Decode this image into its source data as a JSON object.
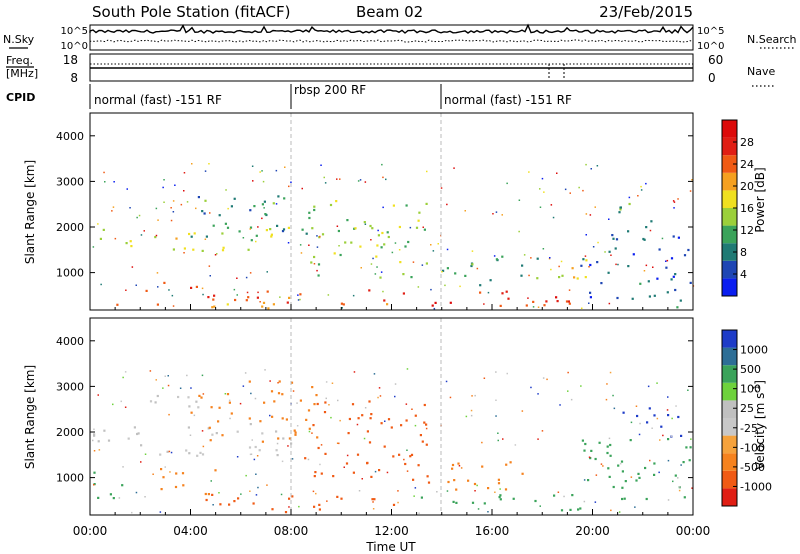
{
  "header": {
    "station": "South Pole Station (fitACF)",
    "beam": "Beam 02",
    "date": "23/Feb/2015"
  },
  "noise_panel": {
    "left_label": "N.Sky",
    "right_label": "N.Search",
    "tick_top": "10^5",
    "tick_bottom": "10^0"
  },
  "freq_panel": {
    "left_label_line1": "Freq.",
    "left_label_line2": "[MHz]",
    "left_tick_top": "18",
    "left_tick_bottom": "8",
    "right_label": "Nave",
    "right_tick_top": "60",
    "right_tick_bottom": "0"
  },
  "cpid": {
    "label": "CPID",
    "segments": [
      {
        "text": "normal (fast) -151 RF",
        "start_hour": 0
      },
      {
        "text": "rbsp 200 RF",
        "start_hour": 8
      },
      {
        "text": "normal (fast) -151 RF",
        "start_hour": 14
      }
    ]
  },
  "chart_data": [
    {
      "type": "heatmap",
      "name": "power",
      "ylabel": "Slant Range [km]",
      "xlim_hours": [
        0,
        24
      ],
      "ylim_km": [
        180,
        4500
      ],
      "yticks": [
        "1000",
        "2000",
        "3000",
        "4000"
      ],
      "colorbar": {
        "label": "Power [dB]",
        "ticks": [
          "4",
          "8",
          "12",
          "16",
          "20",
          "24",
          "28"
        ],
        "colors": [
          "#0a1ef0",
          "#1e46b4",
          "#1f7a74",
          "#3aa35a",
          "#9bcf3a",
          "#f0e020",
          "#f5a020",
          "#f05a14",
          "#e01e14",
          "#dc0a0a"
        ]
      },
      "regions": [
        {
          "h0": 0.0,
          "h1": 7.7,
          "r0": 190,
          "r1": 380,
          "value": 20
        },
        {
          "h0": 0.0,
          "h1": 4.4,
          "r0": 1500,
          "r1": 2000,
          "value": 16
        },
        {
          "h0": 2.0,
          "h1": 4.5,
          "r0": 600,
          "r1": 900,
          "value": 26
        },
        {
          "h0": 4.4,
          "h1": 8.2,
          "r0": 1500,
          "r1": 2100,
          "value": 14
        },
        {
          "h0": 4.0,
          "h1": 9.0,
          "r0": 1800,
          "r1": 2800,
          "value": 10
        },
        {
          "h0": 4.5,
          "h1": 13.0,
          "r0": 250,
          "r1": 650,
          "value": 24
        },
        {
          "h0": 8.5,
          "h1": 13.5,
          "r0": 900,
          "r1": 2600,
          "value": 14
        },
        {
          "h0": 13.0,
          "h1": 19.5,
          "r0": 190,
          "r1": 650,
          "value": 27
        },
        {
          "h0": 14.0,
          "h1": 18.0,
          "r0": 700,
          "r1": 1400,
          "value": 10
        },
        {
          "h0": 18.5,
          "h1": 20.0,
          "r0": 600,
          "r1": 1400,
          "value": 18
        },
        {
          "h0": 19.5,
          "h1": 24.0,
          "r0": 400,
          "r1": 1900,
          "value": 6
        },
        {
          "h0": 21.0,
          "h1": 23.0,
          "r0": 1900,
          "r1": 2600,
          "value": 11
        },
        {
          "h0": 19.0,
          "h1": 24.0,
          "r0": 190,
          "r1": 300,
          "value": 12
        }
      ]
    },
    {
      "type": "heatmap",
      "name": "velocity",
      "ylabel": "Slant Range [km]",
      "xlabel": "Time UT",
      "xlim_hours": [
        0,
        24
      ],
      "ylim_km": [
        180,
        4500
      ],
      "yticks": [
        "1000",
        "2000",
        "3000",
        "4000"
      ],
      "xticks": [
        "00:00",
        "04:00",
        "08:00",
        "12:00",
        "16:00",
        "20:00",
        "00:00"
      ],
      "colorbar": {
        "label": "Velocity [m s",
        "label_sup": "-1",
        "label_end": "]",
        "ticks": [
          "-1000",
          "-500",
          "-100",
          "-25",
          "25",
          "100",
          "500",
          "1000"
        ],
        "colors": [
          "#e01e14",
          "#f05a14",
          "#f5821e",
          "#f5a23c",
          "#c8c8c8",
          "#c0c0c0",
          "#6ed23c",
          "#3aa35a",
          "#2d6e96",
          "#1e3cc8"
        ]
      },
      "regions": [
        {
          "h0": 0.0,
          "h1": 4.4,
          "r0": 1500,
          "r1": 2200,
          "value": 0
        },
        {
          "h0": 2.0,
          "h1": 5.0,
          "r0": 2400,
          "r1": 2900,
          "value": 0
        },
        {
          "h0": 0.0,
          "h1": 1.5,
          "r0": 500,
          "r1": 1200,
          "value": 150
        },
        {
          "h0": 2.5,
          "h1": 5.0,
          "r0": 600,
          "r1": 1300,
          "value": -150
        },
        {
          "h0": 4.4,
          "h1": 8.2,
          "r0": 1500,
          "r1": 2200,
          "value": 0
        },
        {
          "h0": 4.0,
          "h1": 9.0,
          "r0": 1800,
          "r1": 3200,
          "value": -200
        },
        {
          "h0": 4.5,
          "h1": 13.0,
          "r0": 250,
          "r1": 650,
          "value": -300
        },
        {
          "h0": 8.5,
          "h1": 13.5,
          "r0": 900,
          "r1": 2700,
          "value": -400
        },
        {
          "h0": 13.0,
          "h1": 19.5,
          "r0": 190,
          "r1": 650,
          "value": 120
        },
        {
          "h0": 14.0,
          "h1": 18.0,
          "r0": 700,
          "r1": 1400,
          "value": -150
        },
        {
          "h0": 19.5,
          "h1": 24.0,
          "r0": 400,
          "r1": 1900,
          "value": 200
        },
        {
          "h0": 21.0,
          "h1": 23.5,
          "r0": 1900,
          "r1": 2600,
          "value": 800
        }
      ]
    }
  ]
}
